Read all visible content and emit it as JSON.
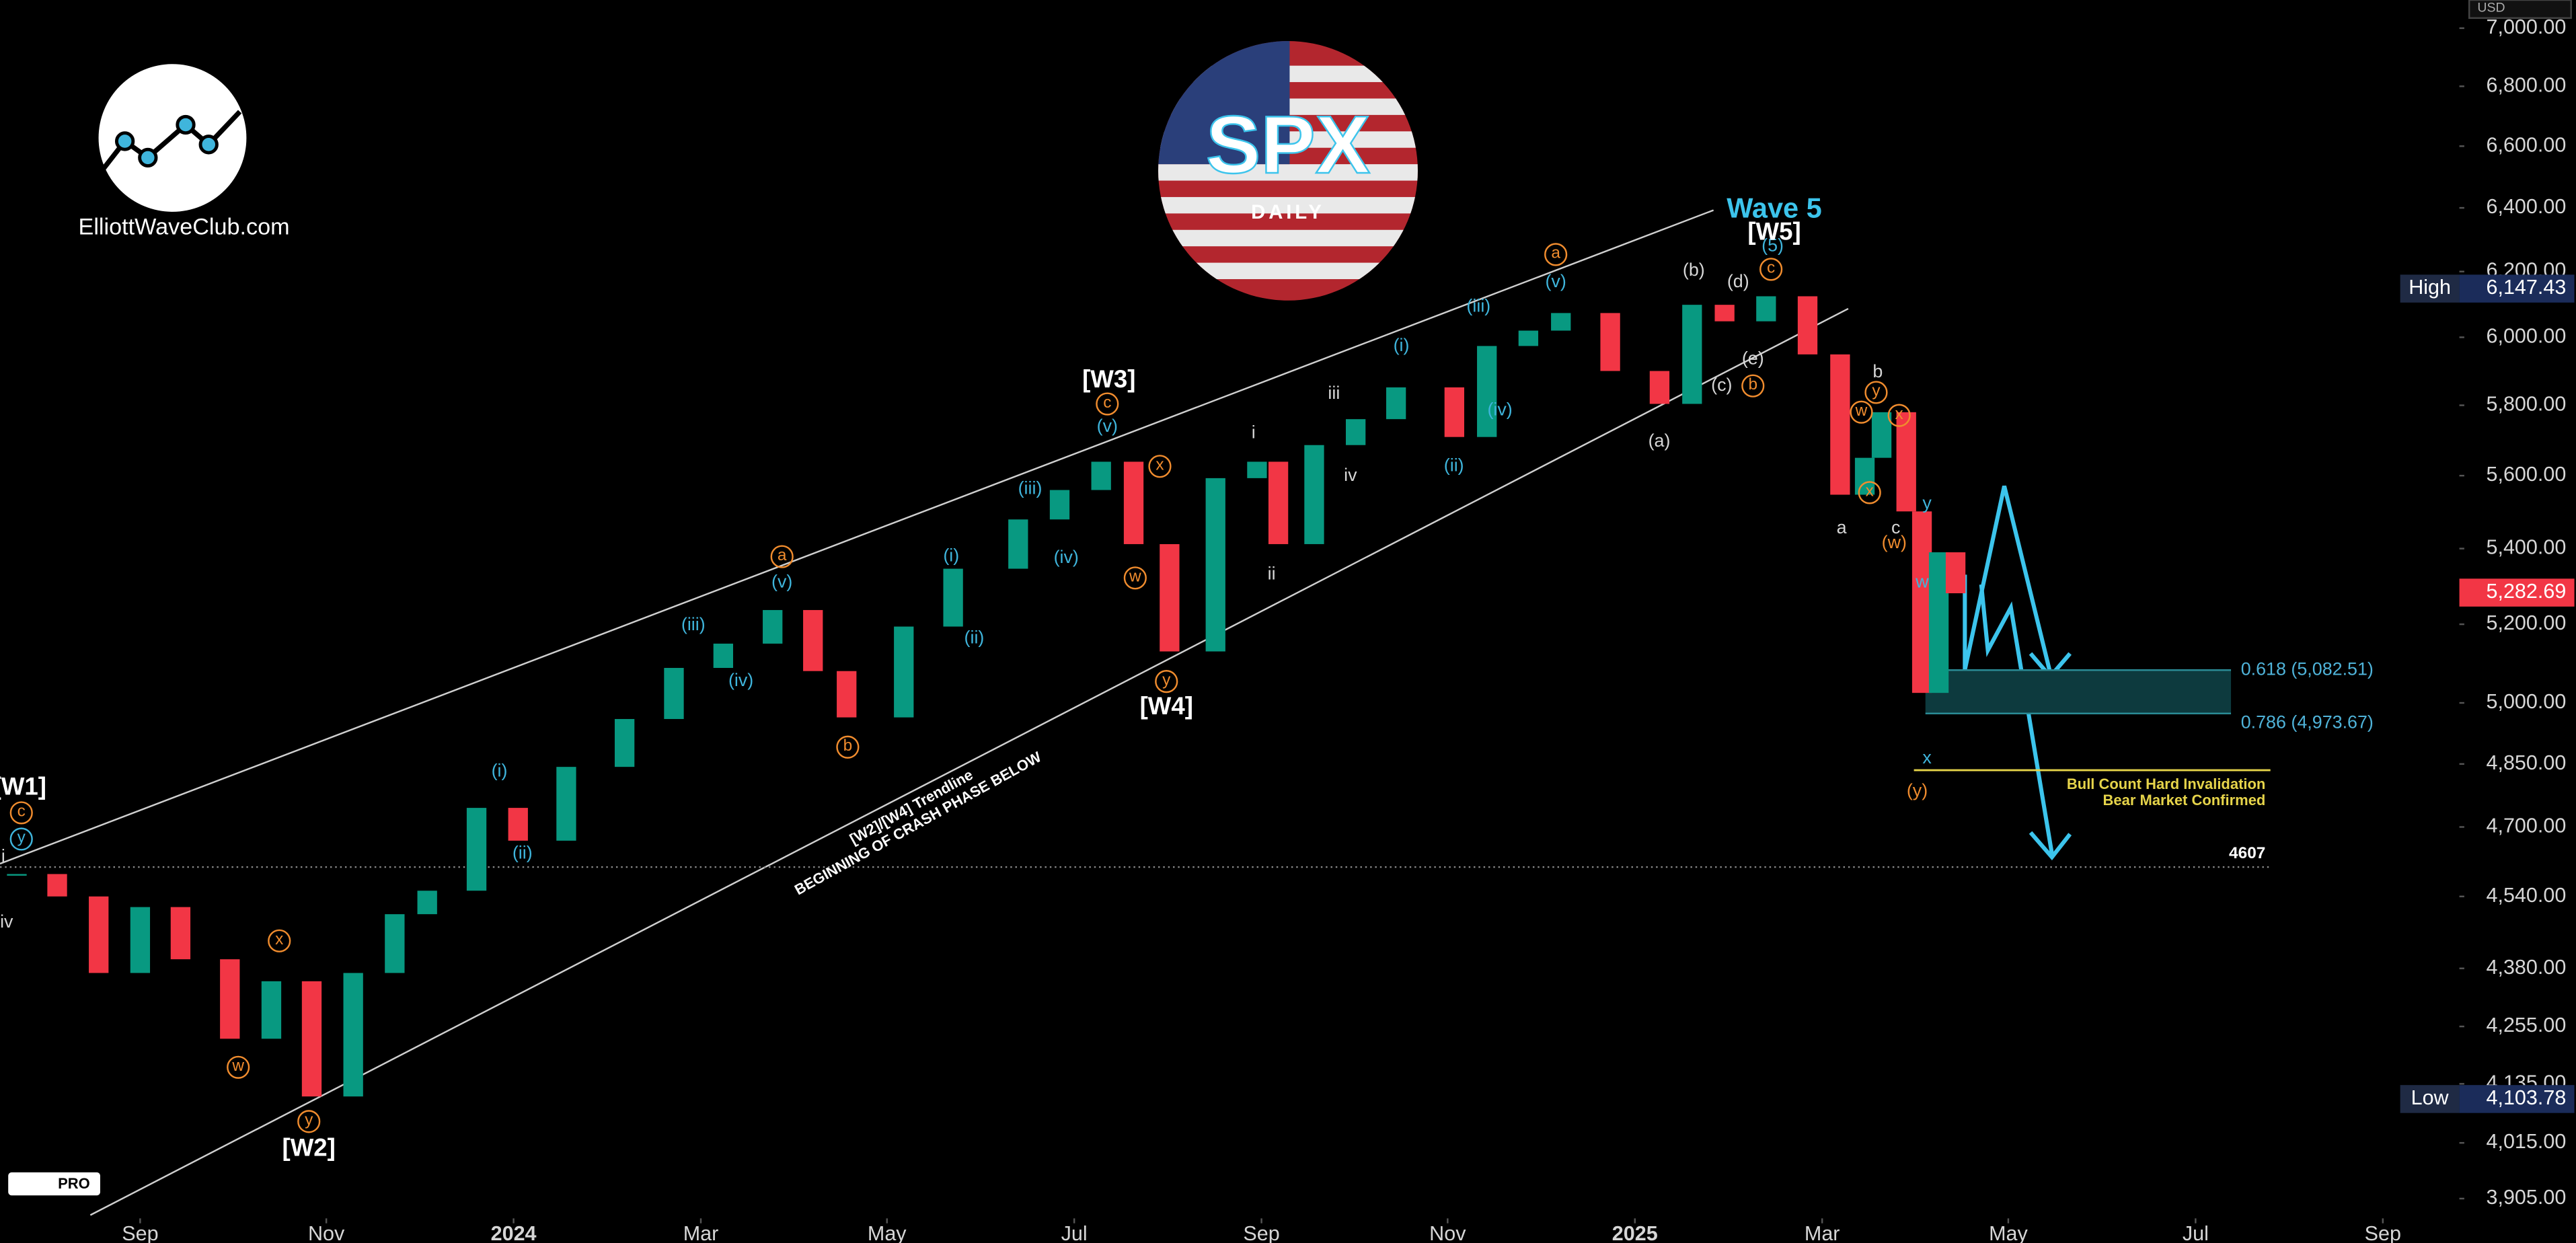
{
  "chart_data": {
    "type": "candlestick",
    "log_scale": true,
    "up_color": "#089981",
    "down_color": "#f23645",
    "x": [
      2023.557,
      2023.593,
      2023.63,
      2023.667,
      2023.703,
      2023.747,
      2023.784,
      2023.82,
      2023.857,
      2023.894,
      2023.923,
      2023.967,
      2024.004,
      2024.047,
      2024.099,
      2024.143,
      2024.187,
      2024.231,
      2024.267,
      2024.297,
      2024.348,
      2024.392,
      2024.45,
      2024.487,
      2024.524,
      2024.553,
      2024.585,
      2024.626,
      2024.663,
      2024.682,
      2024.714,
      2024.751,
      2024.787,
      2024.839,
      2024.868,
      2024.905,
      2024.934,
      2024.978,
      2025.022,
      2025.051,
      2025.08,
      2025.117,
      2025.154,
      2025.183,
      2025.205,
      2025.22,
      2025.242,
      2025.256,
      2025.271,
      2025.286
    ],
    "values": [
      4591,
      4540,
      4370,
      4516,
      4400,
      4229,
      4352,
      4109,
      4370,
      4500,
      4553,
      4745,
      4668,
      4843,
      4960,
      5088,
      5150,
      5237,
      5080,
      4964,
      5194,
      5346,
      5479,
      5560,
      5639,
      5412,
      5130,
      5593,
      5639,
      5412,
      5686,
      5760,
      5852,
      5709,
      5974,
      6020,
      6073,
      5900,
      5804,
      6098,
      6048,
      6124,
      5949,
      5547,
      5650,
      5780,
      5501,
      5025,
      5390,
      5281
    ],
    "xlim": [
      2023.542,
      2025.725
    ],
    "ylim": [
      3873,
      7099
    ],
    "xticks": [
      {
        "value": 2023.667,
        "label": "Sep"
      },
      {
        "value": 2023.833,
        "label": "Nov"
      },
      {
        "value": 2024.0,
        "label": "2024"
      },
      {
        "value": 2024.167,
        "label": "Mar"
      },
      {
        "value": 2024.333,
        "label": "May"
      },
      {
        "value": 2024.5,
        "label": "Jul"
      },
      {
        "value": 2024.667,
        "label": "Sep"
      },
      {
        "value": 2024.833,
        "label": "Nov"
      },
      {
        "value": 2025.0,
        "label": "2025"
      },
      {
        "value": 2025.167,
        "label": "Mar"
      },
      {
        "value": 2025.333,
        "label": "May"
      },
      {
        "value": 2025.5,
        "label": "Jul"
      },
      {
        "value": 2025.667,
        "label": "Sep"
      }
    ],
    "yticks": [
      {
        "value": 7000,
        "label": "7,000.00"
      },
      {
        "value": 6800,
        "label": "6,800.00"
      },
      {
        "value": 6600,
        "label": "6,600.00"
      },
      {
        "value": 6400,
        "label": "6,400.00"
      },
      {
        "value": 6200,
        "label": "6,200.00"
      },
      {
        "value": 6000,
        "label": "6,000.00"
      },
      {
        "value": 5800,
        "label": "5,800.00"
      },
      {
        "value": 5600,
        "label": "5,600.00"
      },
      {
        "value": 5400,
        "label": "5,400.00"
      },
      {
        "value": 5200,
        "label": "5,200.00"
      },
      {
        "value": 5000,
        "label": "5,000.00"
      },
      {
        "value": 4850,
        "label": "4,850.00"
      },
      {
        "value": 4700,
        "label": "4,700.00"
      },
      {
        "value": 4540,
        "label": "4,540.00"
      },
      {
        "value": 4380,
        "label": "4,380.00"
      },
      {
        "value": 4255,
        "label": "4,255.00"
      },
      {
        "value": 4135,
        "label": "4,135.00"
      },
      {
        "value": 4015,
        "label": "4,015.00"
      },
      {
        "value": 3905,
        "label": "3,905.00"
      }
    ],
    "currency": "USD",
    "high": {
      "label": "High",
      "value": 6147.43,
      "value_label": "6,147.43"
    },
    "low": {
      "label": "Low",
      "value": 4103.78,
      "value_label": "4,103.78"
    },
    "last": {
      "value": 5282.69,
      "value_label": "5,282.69"
    },
    "fib_levels": [
      {
        "value": 5082.51,
        "label": "0.618 (5,082.51)"
      },
      {
        "value": 4973.67,
        "label": "0.786 (4,973.67)"
      }
    ],
    "support_line": {
      "value": 4607
    },
    "invalidation": {
      "value": 4835,
      "labels": [
        "Bull Count Hard Invalidation",
        "Bear Market Confirmed"
      ]
    },
    "trendline_label": [
      "[W2]/[W4] Trendline",
      "BEGINNING OF CRASH PHASE BELOW"
    ],
    "wave_labels": [
      "[W1]",
      "c",
      "y",
      "[W2]",
      "y",
      "w",
      "x",
      "(i)",
      "(ii)",
      "(iii)",
      "(iv)",
      "a",
      "(v)",
      "b",
      "(i)",
      "(ii)",
      "(iii)",
      "(iv)",
      "[W3]",
      "c",
      "(v)",
      "x",
      "w",
      "y",
      "[W4]",
      "i",
      "ii",
      "iii",
      "iv",
      "(i)",
      "(ii)",
      "(iii)",
      "(iv)",
      "a",
      "(v)",
      "(a)",
      "(b)",
      "(c)",
      "b",
      "(d)",
      "(e)",
      "c",
      "(5)",
      "[W5]",
      "Wave 5",
      "a",
      "b",
      "y",
      "w",
      "x",
      "x",
      "c",
      "(w)",
      "y",
      "w",
      "x",
      "(y)",
      "iv",
      "i"
    ],
    "logo_text": "ElliottWaveClub.com",
    "badge": {
      "title": "SPX",
      "subtitle": "DAILY"
    },
    "platform": "PRO"
  }
}
